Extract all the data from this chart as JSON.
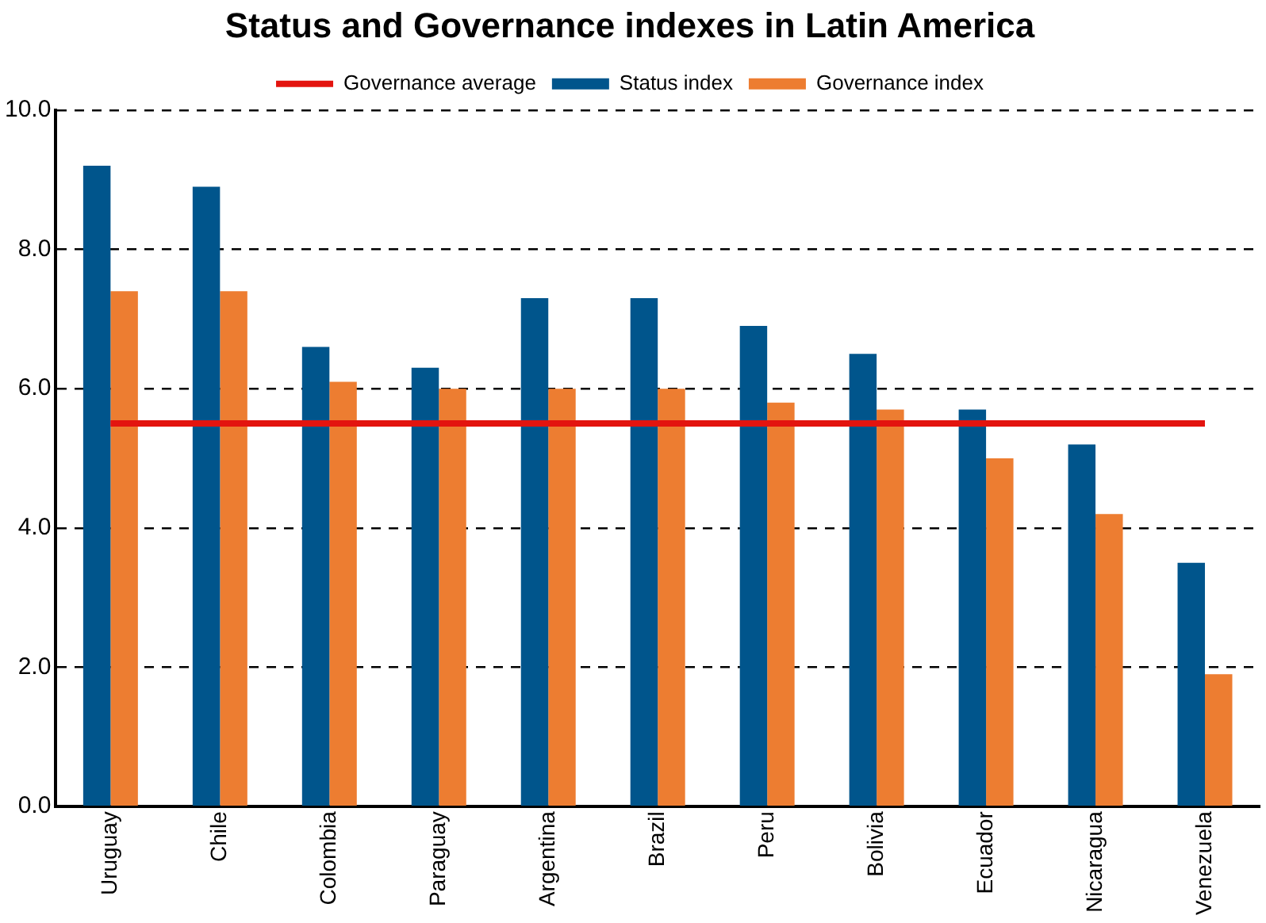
{
  "chart_data": {
    "type": "bar",
    "title": "Status and Governance indexes in Latin America",
    "categories": [
      "Uruguay",
      "Chile",
      "Colombia",
      "Paraguay",
      "Argentina",
      "Brazil",
      "Peru",
      "Bolivia",
      "Ecuador",
      "Nicaragua",
      "Venezuela"
    ],
    "series": [
      {
        "name": "Status index",
        "color": "#00558c",
        "values": [
          9.2,
          8.9,
          6.6,
          6.3,
          7.3,
          7.3,
          6.9,
          6.5,
          5.7,
          5.2,
          3.5
        ]
      },
      {
        "name": "Governance index",
        "color": "#ed7d31",
        "values": [
          7.4,
          7.4,
          6.1,
          6.0,
          6.0,
          6.0,
          5.8,
          5.7,
          5.0,
          4.2,
          1.9
        ]
      },
      {
        "name": "Governance average",
        "color": "#e3140f",
        "type": "line",
        "values": [
          5.5,
          5.5,
          5.5,
          5.5,
          5.5,
          5.5,
          5.5,
          5.5,
          5.5,
          5.5,
          5.5
        ]
      }
    ],
    "ylim": [
      0,
      10
    ],
    "yticks": [
      {
        "value": 0,
        "label": "0.0"
      },
      {
        "value": 2,
        "label": "2.0"
      },
      {
        "value": 4,
        "label": "4.0"
      },
      {
        "value": 6,
        "label": "6.0"
      },
      {
        "value": 8,
        "label": "8.0"
      },
      {
        "value": 10,
        "label": "10.0"
      }
    ],
    "grid": "y",
    "legend": "top",
    "marker": "none",
    "line_style": "solid"
  }
}
